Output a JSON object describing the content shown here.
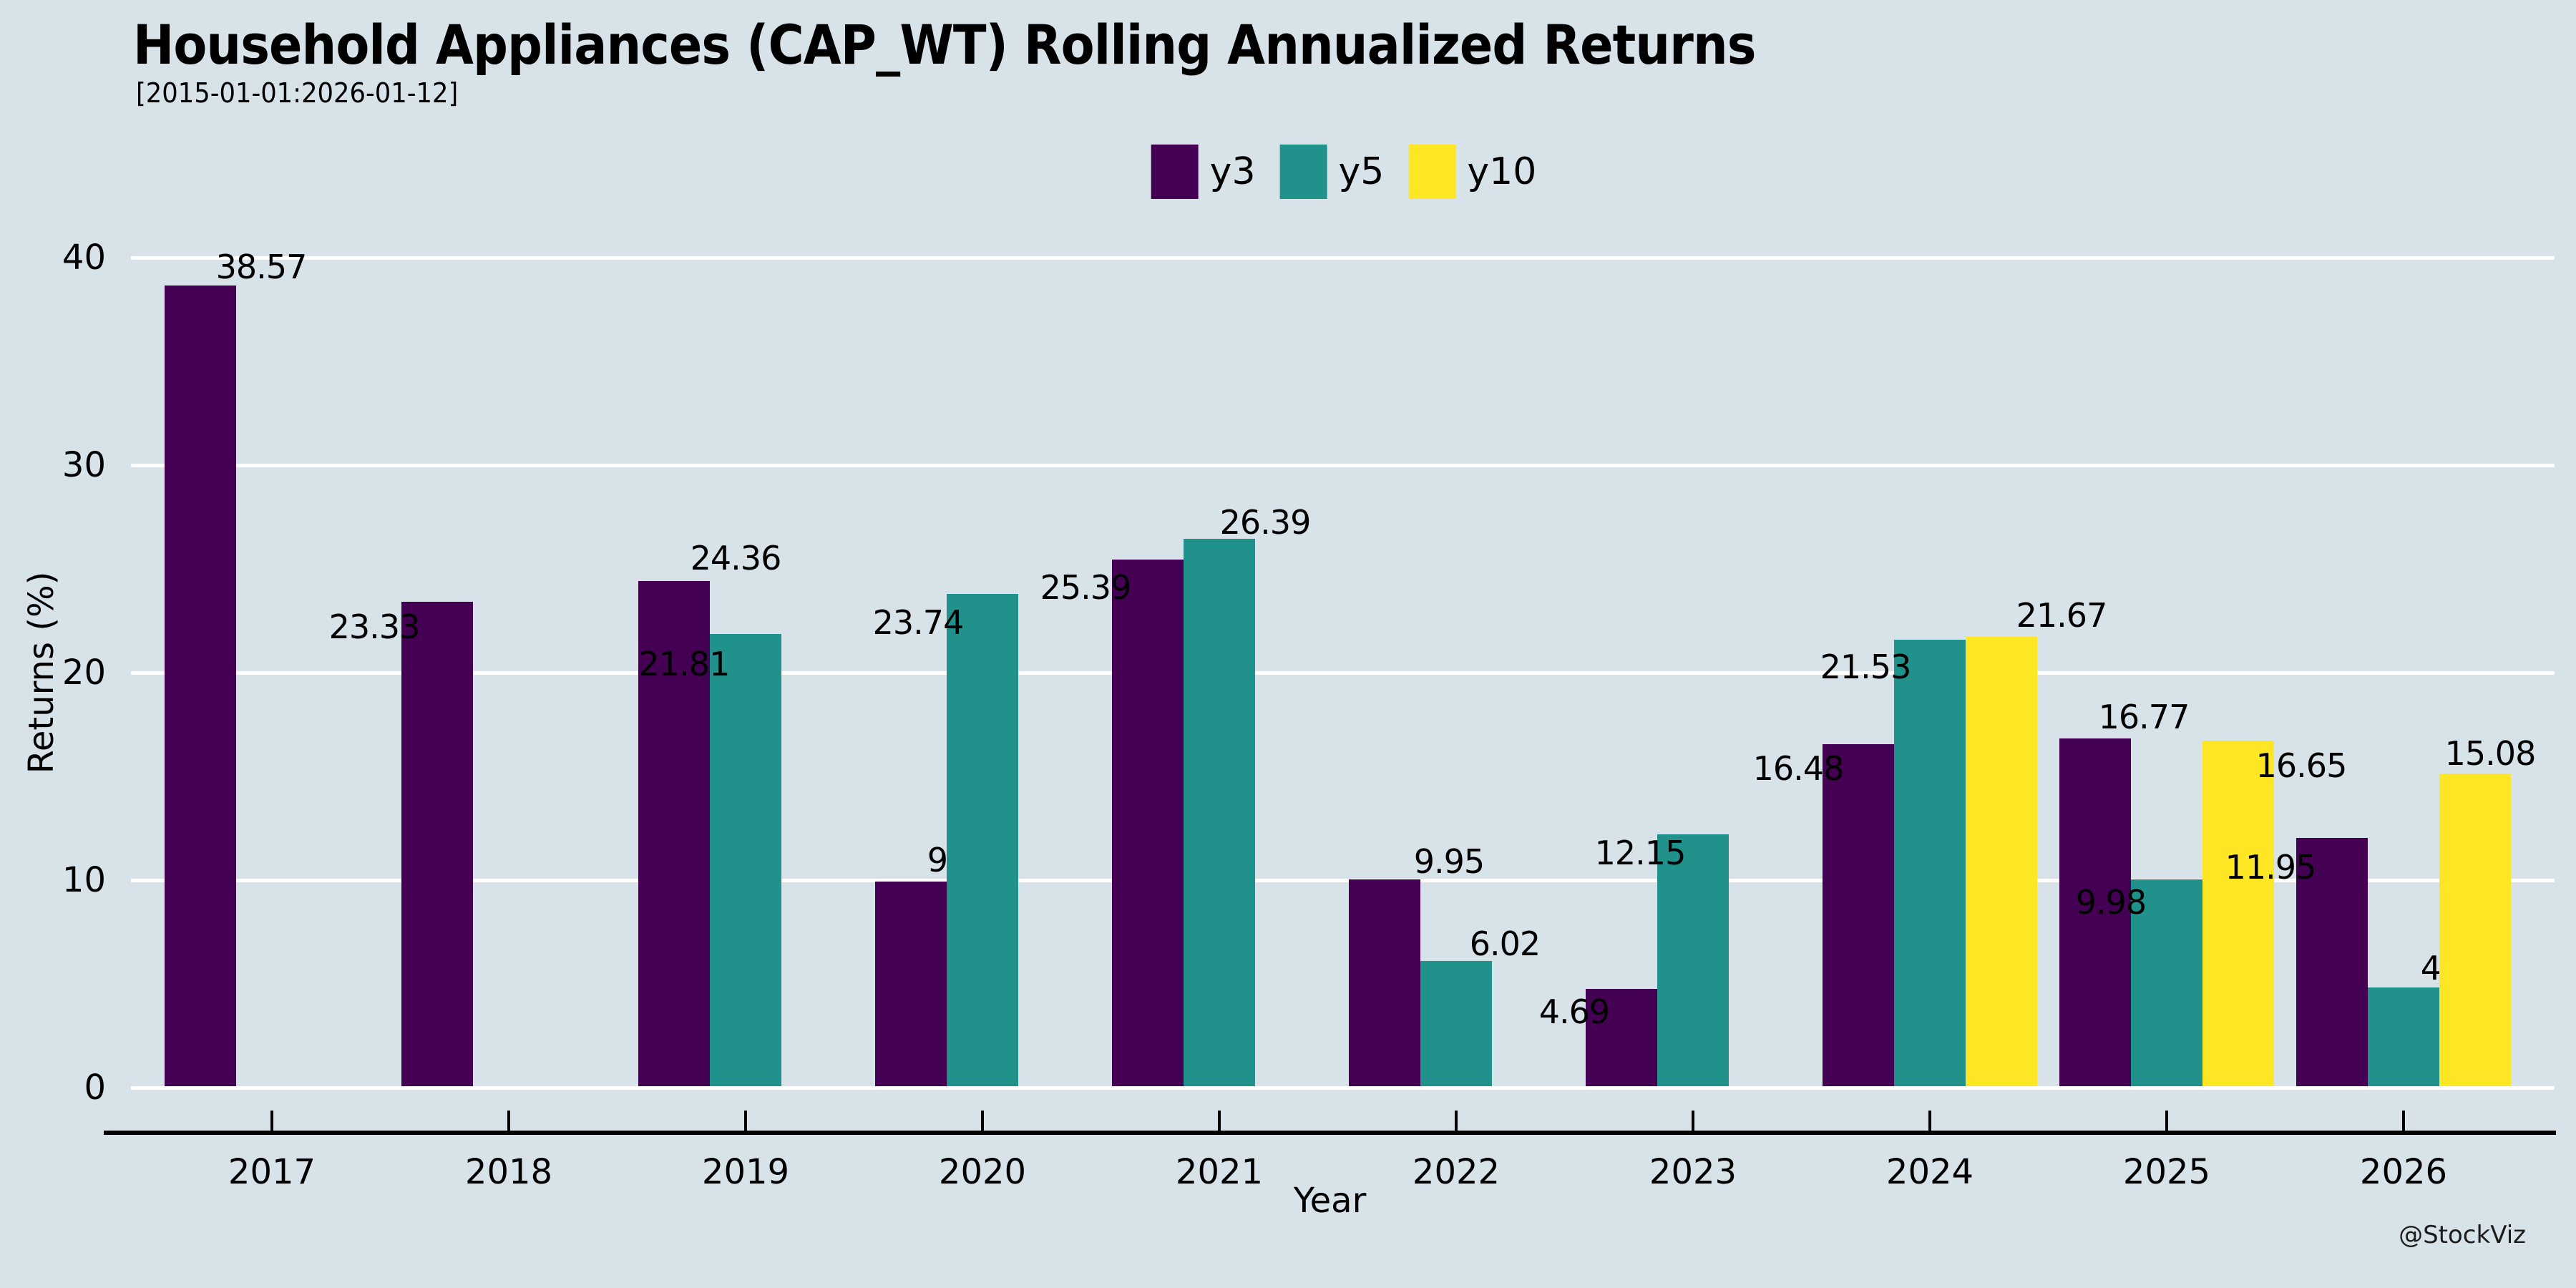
{
  "header": {
    "title": "Household Appliances (CAP_WT) Rolling Annualized Returns",
    "subtitle": "[2015-01-01:2026-01-12]"
  },
  "watermark": "@StockViz",
  "chart_data": {
    "type": "bar",
    "title": "Household Appliances (CAP_WT) Rolling Annualized Returns",
    "subtitle": "[2015-01-01:2026-01-12]",
    "xlabel": "Year",
    "ylabel": "Returns (%)",
    "categories": [
      "2017",
      "2018",
      "2019",
      "2020",
      "2021",
      "2022",
      "2023",
      "2024",
      "2025",
      "2026"
    ],
    "series": [
      {
        "name": "y3",
        "color": "#440154",
        "values": [
          38.57,
          23.33,
          24.36,
          9.86,
          25.39,
          9.95,
          4.69,
          16.48,
          16.77,
          11.95
        ]
      },
      {
        "name": "y5",
        "color": "#21918c",
        "values": [
          null,
          null,
          21.81,
          23.74,
          26.39,
          6.02,
          12.15,
          21.53,
          9.98,
          4.77
        ]
      },
      {
        "name": "y10",
        "color": "#fde725",
        "values": [
          null,
          null,
          null,
          null,
          null,
          null,
          null,
          21.67,
          16.65,
          15.08
        ]
      }
    ],
    "ylim": [
      0,
      40
    ],
    "yticks": [
      0,
      10,
      20,
      30,
      40
    ],
    "grid": true,
    "gridline_color": "#ffffff",
    "background": "#d8e2e9",
    "legend_position": "top-center",
    "bar_label_color": "#000000",
    "label_offsets": {
      "y3": [
        [
          85,
          -26
        ],
        [
          -88,
          35
        ],
        [
          86,
          -32
        ],
        [
          72,
          -30
        ],
        [
          -87,
          39
        ],
        [
          90,
          -25
        ],
        [
          -66,
          32
        ],
        [
          -84,
          34
        ],
        [
          68,
          -30
        ],
        [
          -86,
          41
        ]
      ],
      "y5": [
        null,
        null,
        [
          -86,
          42
        ],
        [
          -90,
          40
        ],
        [
          64,
          -23
        ],
        [
          68,
          -24
        ],
        [
          -74,
          26
        ],
        [
          -90,
          38
        ],
        [
          -78,
          32
        ],
        [
          73,
          -27
        ]
      ],
      "y10": [
        null,
        null,
        null,
        null,
        null,
        null,
        null,
        [
          84,
          -30
        ],
        [
          88,
          35
        ],
        [
          21,
          -28
        ]
      ]
    }
  }
}
